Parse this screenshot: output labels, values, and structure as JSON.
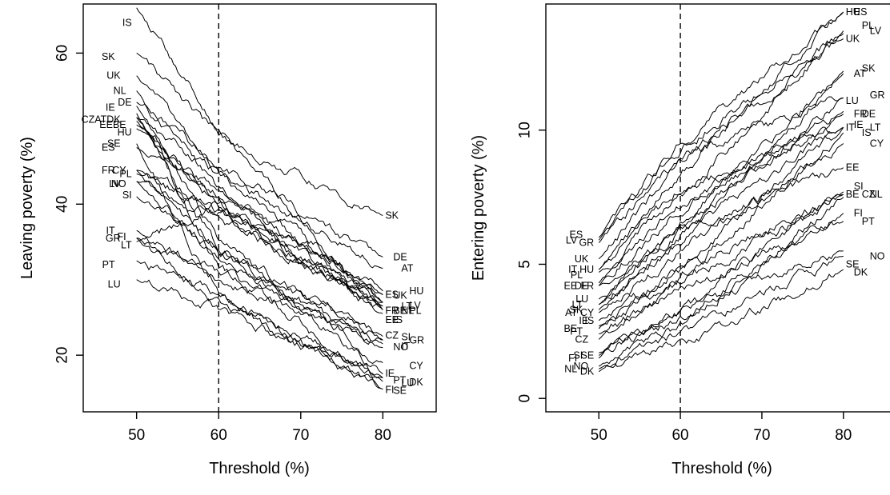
{
  "chart_data": [
    {
      "type": "line",
      "xlabel": "Threshold (%)",
      "ylabel": "Leaving poverty (%)",
      "xlim": [
        43.5,
        86.5
      ],
      "ylim": [
        12.5,
        66.5
      ],
      "xticks": [
        50,
        60,
        70,
        80
      ],
      "yticks": [
        20,
        40,
        60
      ],
      "reference_x": 60,
      "x_range": [
        50,
        80
      ],
      "series": [
        {
          "name": "IS",
          "start": 66.0,
          "mid": 50.0,
          "end": 26.0
        },
        {
          "name": "SK",
          "start": 60.0,
          "mid": 49.0,
          "end": 38.5
        },
        {
          "name": "UK",
          "start": 57.0,
          "mid": 44.0,
          "end": 28.0
        },
        {
          "name": "NL",
          "start": 55.0,
          "mid": 42.0,
          "end": 27.0
        },
        {
          "name": "DE",
          "start": 53.5,
          "mid": 45.0,
          "end": 33.0
        },
        {
          "name": "IE",
          "start": 53.0,
          "mid": 35.0,
          "end": 17.5
        },
        {
          "name": "CZ",
          "start": 52.0,
          "mid": 34.0,
          "end": 22.5
        },
        {
          "name": "AT",
          "start": 51.5,
          "mid": 44.0,
          "end": 31.5
        },
        {
          "name": "DK",
          "start": 51.5,
          "mid": 32.0,
          "end": 16.5
        },
        {
          "name": "EE",
          "start": 51.0,
          "mid": 40.0,
          "end": 25.5
        },
        {
          "name": "BE",
          "start": 50.5,
          "mid": 40.0,
          "end": 26.5
        },
        {
          "name": "HU",
          "start": 50.0,
          "mid": 41.0,
          "end": 28.5
        },
        {
          "name": "ES",
          "start": 47.5,
          "mid": 42.0,
          "end": 28.0
        },
        {
          "name": "SE",
          "start": 48.0,
          "mid": 28.0,
          "end": 15.5
        },
        {
          "name": "CY",
          "start": 44.5,
          "mid": 34.0,
          "end": 19.0
        },
        {
          "name": "PL",
          "start": 44.0,
          "mid": 39.0,
          "end": 26.0
        },
        {
          "name": "FR",
          "start": 44.5,
          "mid": 39.0,
          "end": 26.5
        },
        {
          "name": "LV",
          "start": 43.0,
          "mid": 38.0,
          "end": 27.0
        },
        {
          "name": "NO",
          "start": 43.0,
          "mid": 33.0,
          "end": 21.0
        },
        {
          "name": "SI",
          "start": 41.0,
          "mid": 34.0,
          "end": 22.0
        },
        {
          "name": "IT",
          "start": 36.5,
          "mid": 30.0,
          "end": 21.5
        },
        {
          "name": "GR",
          "start": 35.5,
          "mid": 31.0,
          "end": 22.0
        },
        {
          "name": "LT",
          "start": 35.0,
          "mid": 40.0,
          "end": 27.0
        },
        {
          "name": "FI",
          "start": 35.5,
          "mid": 27.0,
          "end": 15.5
        },
        {
          "name": "PT",
          "start": 32.5,
          "mid": 28.0,
          "end": 17.0
        },
        {
          "name": "LU",
          "start": 30.0,
          "mid": 26.0,
          "end": 17.0
        }
      ],
      "start_labels": [
        {
          "text": "IS",
          "y": 64.0
        },
        {
          "text": "SK",
          "y": 59.5
        },
        {
          "text": "UK",
          "y": 57.0
        },
        {
          "text": "NL",
          "y": 55.0
        },
        {
          "text": "DE",
          "y": 53.5
        },
        {
          "text": "IE",
          "y": 52.8
        },
        {
          "text": "CZATDK",
          "y": 51.2
        },
        {
          "text": "EEBE",
          "y": 50.5
        },
        {
          "text": "HU",
          "y": 49.5
        },
        {
          "text": "ES",
          "y": 47.5
        },
        {
          "text": "SE",
          "y": 48.0
        },
        {
          "text": "CY",
          "y": 44.5
        },
        {
          "text": "PL",
          "y": 44.0
        },
        {
          "text": "FR",
          "y": 44.5
        },
        {
          "text": "LV",
          "y": 42.7
        },
        {
          "text": "NO",
          "y": 42.7
        },
        {
          "text": "SI",
          "y": 41.2
        },
        {
          "text": "IT",
          "y": 36.5
        },
        {
          "text": "GR",
          "y": 35.5
        },
        {
          "text": "FI",
          "y": 35.7
        },
        {
          "text": "LT",
          "y": 34.6
        },
        {
          "text": "PT",
          "y": 32.0
        },
        {
          "text": "LU",
          "y": 29.4
        }
      ],
      "end_labels": [
        {
          "text": "SK",
          "y": 38.5
        },
        {
          "text": "DE",
          "y": 33.0
        },
        {
          "text": "AT",
          "y": 31.5
        },
        {
          "text": "HU",
          "y": 28.5
        },
        {
          "text": "ES",
          "y": 28.0
        },
        {
          "text": "UK",
          "y": 27.9
        },
        {
          "text": "LT",
          "y": 26.5
        },
        {
          "text": "LV",
          "y": 26.6
        },
        {
          "text": "FR",
          "y": 25.9
        },
        {
          "text": "BE",
          "y": 25.9
        },
        {
          "text": "NL",
          "y": 25.9
        },
        {
          "text": "PL",
          "y": 25.9
        },
        {
          "text": "EE",
          "y": 24.7
        },
        {
          "text": "IS",
          "y": 24.7
        },
        {
          "text": "SI",
          "y": 22.4
        },
        {
          "text": "GR",
          "y": 22.0
        },
        {
          "text": "CZ",
          "y": 22.6
        },
        {
          "text": "NO",
          "y": 21.1
        },
        {
          "text": "IT",
          "y": 21.2
        },
        {
          "text": "CY",
          "y": 18.6
        },
        {
          "text": "IE",
          "y": 17.6
        },
        {
          "text": "PT",
          "y": 16.7
        },
        {
          "text": "LU",
          "y": 16.3
        },
        {
          "text": "DK",
          "y": 16.4
        },
        {
          "text": "FI",
          "y": 15.4
        },
        {
          "text": "SE",
          "y": 15.3
        }
      ]
    },
    {
      "type": "line",
      "xlabel": "Threshold (%)",
      "ylabel": "Entering poverty (%)",
      "xlim": [
        43.5,
        86.5
      ],
      "ylim": [
        -0.5,
        14.7
      ],
      "xticks": [
        50,
        60,
        70,
        80
      ],
      "yticks": [
        0,
        5,
        10
      ],
      "reference_x": 60,
      "x_range": [
        50,
        80
      ],
      "series": [
        {
          "name": "GR",
          "start": 5.8,
          "mid": 9.0,
          "end": 11.2
        },
        {
          "name": "LV",
          "start": 5.9,
          "mid": 9.3,
          "end": 13.6
        },
        {
          "name": "ES",
          "start": 6.0,
          "mid": 9.5,
          "end": 14.4
        },
        {
          "name": "UK",
          "start": 5.2,
          "mid": 8.8,
          "end": 13.4
        },
        {
          "name": "HU",
          "start": 4.8,
          "mid": 8.4,
          "end": 14.4
        },
        {
          "name": "IT",
          "start": 4.8,
          "mid": 7.8,
          "end": 10.1
        },
        {
          "name": "PL",
          "start": 4.7,
          "mid": 7.5,
          "end": 13.7
        },
        {
          "name": "DE",
          "start": 4.2,
          "mid": 7.0,
          "end": 10.6
        },
        {
          "name": "FR",
          "start": 4.3,
          "mid": 7.2,
          "end": 10.7
        },
        {
          "name": "EE",
          "start": 4.2,
          "mid": 6.3,
          "end": 8.6
        },
        {
          "name": "LT",
          "start": 3.5,
          "mid": 6.0,
          "end": 10.1
        },
        {
          "name": "LU",
          "start": 3.7,
          "mid": 6.2,
          "end": 11.2
        },
        {
          "name": "CY",
          "start": 3.2,
          "mid": 5.5,
          "end": 9.5
        },
        {
          "name": "AT",
          "start": 3.3,
          "mid": 5.8,
          "end": 12.1
        },
        {
          "name": "SK",
          "start": 3.5,
          "mid": 6.5,
          "end": 12.2
        },
        {
          "name": "IE",
          "start": 2.9,
          "mid": 4.8,
          "end": 10.1
        },
        {
          "name": "IS",
          "start": 2.7,
          "mid": 4.5,
          "end": 9.9
        },
        {
          "name": "BE",
          "start": 2.6,
          "mid": 4.8,
          "end": 7.6
        },
        {
          "name": "PT",
          "start": 2.4,
          "mid": 4.1,
          "end": 6.6
        },
        {
          "name": "CZ",
          "start": 2.2,
          "mid": 4.3,
          "end": 7.6
        },
        {
          "name": "SE",
          "start": 1.6,
          "mid": 3.3,
          "end": 5.5
        },
        {
          "name": "FI",
          "start": 1.5,
          "mid": 3.0,
          "end": 6.9
        },
        {
          "name": "SI",
          "start": 1.7,
          "mid": 3.2,
          "end": 7.7
        },
        {
          "name": "NO",
          "start": 1.2,
          "mid": 2.5,
          "end": 5.3
        },
        {
          "name": "DK",
          "start": 1.0,
          "mid": 2.0,
          "end": 4.8
        },
        {
          "name": "NL",
          "start": 1.1,
          "mid": 2.7,
          "end": 7.5
        }
      ],
      "start_labels": [
        {
          "text": "GR",
          "y": 5.8
        },
        {
          "text": "LV",
          "y": 5.9
        },
        {
          "text": "ES",
          "y": 6.1
        },
        {
          "text": "UK",
          "y": 5.2
        },
        {
          "text": "HU",
          "y": 4.8
        },
        {
          "text": "IT",
          "y": 4.8
        },
        {
          "text": "PL",
          "y": 4.6
        },
        {
          "text": "DE",
          "y": 4.2
        },
        {
          "text": "FR",
          "y": 4.2
        },
        {
          "text": "EE",
          "y": 4.2
        },
        {
          "text": "LT",
          "y": 3.5
        },
        {
          "text": "LU",
          "y": 3.7
        },
        {
          "text": "CY",
          "y": 3.2
        },
        {
          "text": "AT",
          "y": 3.2
        },
        {
          "text": "SK",
          "y": 3.3
        },
        {
          "text": "IE",
          "y": 2.9
        },
        {
          "text": "IS",
          "y": 2.9
        },
        {
          "text": "BE",
          "y": 2.6
        },
        {
          "text": "PT",
          "y": 2.5
        },
        {
          "text": "CZ",
          "y": 2.2
        },
        {
          "text": "SE",
          "y": 1.6
        },
        {
          "text": "FI",
          "y": 1.5
        },
        {
          "text": "SI",
          "y": 1.6
        },
        {
          "text": "NO",
          "y": 1.2
        },
        {
          "text": "DK",
          "y": 1.0
        },
        {
          "text": "NL",
          "y": 1.1
        }
      ],
      "end_labels": [
        {
          "text": "HU",
          "y": 14.4
        },
        {
          "text": "ES",
          "y": 14.4
        },
        {
          "text": "PL",
          "y": 13.9
        },
        {
          "text": "LV",
          "y": 13.7
        },
        {
          "text": "UK",
          "y": 13.4
        },
        {
          "text": "AT",
          "y": 12.1
        },
        {
          "text": "SK",
          "y": 12.3
        },
        {
          "text": "GR",
          "y": 11.3
        },
        {
          "text": "LU",
          "y": 11.1
        },
        {
          "text": "FR",
          "y": 10.6
        },
        {
          "text": "DE",
          "y": 10.6
        },
        {
          "text": "LT",
          "y": 10.1
        },
        {
          "text": "IT",
          "y": 10.1
        },
        {
          "text": "IE",
          "y": 10.2
        },
        {
          "text": "IS",
          "y": 9.9
        },
        {
          "text": "CY",
          "y": 9.5
        },
        {
          "text": "EE",
          "y": 8.6
        },
        {
          "text": "SI",
          "y": 7.9
        },
        {
          "text": "CZ",
          "y": 7.6
        },
        {
          "text": "NL",
          "y": 7.6
        },
        {
          "text": "BE",
          "y": 7.6
        },
        {
          "text": "FI",
          "y": 6.9
        },
        {
          "text": "PT",
          "y": 6.6
        },
        {
          "text": "NO",
          "y": 5.3
        },
        {
          "text": "SE",
          "y": 5.0
        },
        {
          "text": "DK",
          "y": 4.7
        }
      ]
    }
  ]
}
